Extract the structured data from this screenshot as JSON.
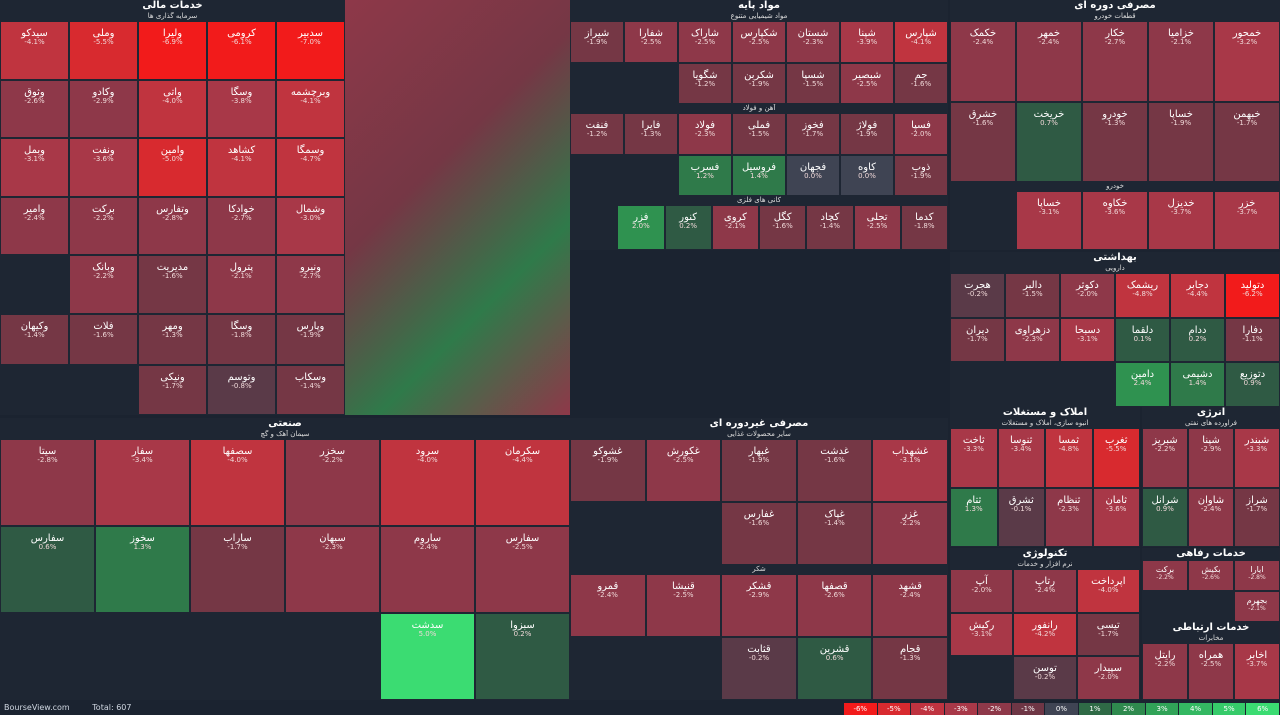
{
  "footer": {
    "site": "BourseView.com",
    "total": "Total: 607"
  },
  "legend": [
    {
      "label": "-6%",
      "color": "#f21b1b"
    },
    {
      "label": "-5%",
      "color": "#d82a2f"
    },
    {
      "label": "-4%",
      "color": "#bf3340"
    },
    {
      "label": "-3%",
      "color": "#a83848"
    },
    {
      "label": "-2%",
      "color": "#8e3849"
    },
    {
      "label": "-1%",
      "color": "#6e3645"
    },
    {
      "label": "0%",
      "color": "#3f4453"
    },
    {
      "label": "1%",
      "color": "#2f6a46"
    },
    {
      "label": "2%",
      "color": "#2f8a4e"
    },
    {
      "label": "3%",
      "color": "#31a358"
    },
    {
      "label": "4%",
      "color": "#34b862"
    },
    {
      "label": "5%",
      "color": "#36cb6a"
    },
    {
      "label": "6%",
      "color": "#3bdc72"
    }
  ],
  "sections": [
    {
      "title": "خدمات مالی",
      "subs": [
        {
          "title": "سرمایه گذاری ها",
          "tiles": [
            {
              "s": "سدبیر",
              "p": "-7.0%"
            },
            {
              "s": "کرومی",
              "p": "-6.1%"
            },
            {
              "s": "ولیرا",
              "p": "-6.9%"
            },
            {
              "s": "وملی",
              "p": "-5.5%"
            },
            {
              "s": "سیدکو",
              "p": "-4.1%"
            },
            {
              "s": "وبرچشمه",
              "p": "-4.1%"
            },
            {
              "s": "وسگا",
              "p": "-3.8%"
            },
            {
              "s": "واتی",
              "p": "-4.0%"
            },
            {
              "s": "وکادو",
              "p": "-2.9%"
            },
            {
              "s": "وثوق",
              "p": "-2.6%"
            },
            {
              "s": "وسمگا",
              "p": "-4.7%"
            },
            {
              "s": "کشاهد",
              "p": "-4.1%"
            },
            {
              "s": "وامین",
              "p": "-5.0%"
            },
            {
              "s": "ونفت",
              "p": "-3.6%"
            },
            {
              "s": "وبمل",
              "p": "-3.1%"
            },
            {
              "s": "وشمال",
              "p": "-3.0%"
            },
            {
              "s": "خوادکا",
              "p": "-2.7%"
            },
            {
              "s": "وتفارس",
              "p": "-2.8%"
            },
            {
              "s": "برکت",
              "p": "-2.2%"
            },
            {
              "s": "وامیر",
              "p": "-2.4%"
            },
            {
              "s": "ونیرو",
              "p": "-2.7%"
            },
            {
              "s": "پترول",
              "p": "-2.1%"
            },
            {
              "s": "مدیریت",
              "p": "-1.6%"
            },
            {
              "s": "وبانک",
              "p": "-2.2%"
            }
          ]
        },
        {
          "title": "",
          "tiles": [
            {
              "s": "وپارس",
              "p": "-1.9%"
            },
            {
              "s": "وسگا",
              "p": "-1.8%"
            },
            {
              "s": "ومهر",
              "p": "-1.3%"
            },
            {
              "s": "فلات",
              "p": "-1.6%"
            },
            {
              "s": "وکیهان",
              "p": "-1.4%"
            },
            {
              "s": "وسکاب",
              "p": "-1.4%"
            },
            {
              "s": "وتوسم",
              "p": "-0.8%"
            },
            {
              "s": "ونیکی",
              "p": "-1.7%"
            }
          ]
        }
      ]
    },
    {
      "title": "مواد پایه",
      "subs": [
        {
          "title": "مواد شیمیایی متنوع",
          "tiles": [
            {
              "s": "شپارس",
              "p": "-4.1%"
            },
            {
              "s": "شپنا",
              "p": "-3.9%"
            },
            {
              "s": "شستان",
              "p": "-2.3%"
            },
            {
              "s": "شکپارس",
              "p": "-2.5%"
            },
            {
              "s": "شاراک",
              "p": "-2.5%"
            },
            {
              "s": "شفارا",
              "p": "-2.5%"
            },
            {
              "s": "شیراز",
              "p": "-1.9%"
            },
            {
              "s": "جم",
              "p": "-1.6%"
            },
            {
              "s": "شبصیر",
              "p": "-2.5%"
            },
            {
              "s": "شسپا",
              "p": "-1.5%"
            },
            {
              "s": "شکربن",
              "p": "-1.9%"
            },
            {
              "s": "شگویا",
              "p": "-1.2%"
            }
          ]
        },
        {
          "title": "آهن و فولاد",
          "tiles": [
            {
              "s": "فسپا",
              "p": "-2.0%"
            },
            {
              "s": "فولاژ",
              "p": "-1.9%"
            },
            {
              "s": "فخوز",
              "p": "-1.7%"
            },
            {
              "s": "فملی",
              "p": "-1.5%"
            },
            {
              "s": "فولاد",
              "p": "-2.3%"
            },
            {
              "s": "فایرا",
              "p": "-1.3%"
            },
            {
              "s": "فنفت",
              "p": "-1.2%"
            },
            {
              "s": "ذوب",
              "p": "-1.9%"
            },
            {
              "s": "کاوه",
              "p": "0.0%"
            },
            {
              "s": "فجهان",
              "p": "0.0%"
            },
            {
              "s": "فروسیل",
              "p": "1.4%"
            },
            {
              "s": "فسرب",
              "p": "1.2%"
            }
          ]
        },
        {
          "title": "کانی های فلزی",
          "tiles": [
            {
              "s": "کدما",
              "p": "-1.8%"
            },
            {
              "s": "تجلی",
              "p": "-2.5%"
            },
            {
              "s": "کچاد",
              "p": "-1.4%"
            },
            {
              "s": "کگل",
              "p": "-1.6%"
            },
            {
              "s": "کروی",
              "p": "-2.1%"
            },
            {
              "s": "کنور",
              "p": "0.2%"
            },
            {
              "s": "فزر",
              "p": "2.0%"
            }
          ]
        }
      ]
    },
    {
      "title": "مصرفی دوره ای",
      "subs": [
        {
          "title": "قطعات خودرو",
          "tiles": [
            {
              "s": "خمحور",
              "p": "-3.2%"
            },
            {
              "s": "خزامیا",
              "p": "-2.1%"
            },
            {
              "s": "خکار",
              "p": "-2.7%"
            },
            {
              "s": "خمهر",
              "p": "-2.4%"
            },
            {
              "s": "خکمک",
              "p": "-2.4%"
            },
            {
              "s": "خبهمن",
              "p": "-1.7%"
            },
            {
              "s": "خساپا",
              "p": "-1.9%"
            },
            {
              "s": "خودرو",
              "p": "-1.3%"
            },
            {
              "s": "خریخت",
              "p": "0.7%"
            },
            {
              "s": "خشرق",
              "p": "-1.6%"
            }
          ]
        },
        {
          "title": "خودرو",
          "tiles": [
            {
              "s": "خزر",
              "p": "-3.7%"
            },
            {
              "s": "خدیزل",
              "p": "-3.7%"
            },
            {
              "s": "خکاوه",
              "p": "-3.6%"
            },
            {
              "s": "خساپا",
              "p": "-3.1%"
            }
          ]
        }
      ]
    },
    {
      "title": "بهداشتی",
      "subs": [
        {
          "title": "دارویی",
          "tiles": [
            {
              "s": "دتولید",
              "p": "-6.2%"
            },
            {
              "s": "دجابر",
              "p": "-4.4%"
            },
            {
              "s": "ریشمک",
              "p": "-4.8%"
            },
            {
              "s": "دکوثر",
              "p": "-2.0%"
            },
            {
              "s": "دالبر",
              "p": "-1.5%"
            },
            {
              "s": "هجرت",
              "p": "-0.2%"
            },
            {
              "s": "دفارا",
              "p": "-1.1%"
            },
            {
              "s": "ددام",
              "p": "0.2%"
            },
            {
              "s": "دلقما",
              "p": "0.1%"
            },
            {
              "s": "دسبحا",
              "p": "-3.1%"
            },
            {
              "s": "دزهراوی",
              "p": "-2.3%"
            },
            {
              "s": "دیران",
              "p": "-1.7%"
            },
            {
              "s": "دتوزیع",
              "p": "0.9%"
            },
            {
              "s": "دشیمی",
              "p": "1.4%"
            },
            {
              "s": "دامین",
              "p": "2.4%"
            }
          ]
        }
      ]
    },
    {
      "title": "صنعتی",
      "subs": [
        {
          "title": "سیمان آهک و گچ",
          "tiles": [
            {
              "s": "سکرمان",
              "p": "-4.4%"
            },
            {
              "s": "سرود",
              "p": "-4.0%"
            },
            {
              "s": "سخزر",
              "p": "-2.2%"
            },
            {
              "s": "سصفها",
              "p": "-4.0%"
            },
            {
              "s": "سفار",
              "p": "-3.4%"
            },
            {
              "s": "سیتا",
              "p": "-2.8%"
            },
            {
              "s": "سفارس",
              "p": "-2.5%"
            },
            {
              "s": "ساروم",
              "p": "-2.4%"
            },
            {
              "s": "سبهان",
              "p": "-2.3%"
            },
            {
              "s": "ساراب",
              "p": "-1.7%"
            },
            {
              "s": "سخوز",
              "p": "1.3%"
            },
            {
              "s": "سفارس",
              "p": "0.6%"
            },
            {
              "s": "سبزوا",
              "p": "0.2%"
            },
            {
              "s": "سدشت",
              "p": "5.0%"
            }
          ]
        }
      ]
    },
    {
      "title": "مصرفی غیردوره ای",
      "subs": [
        {
          "title": "سایر محصولات غذایی",
          "tiles": [
            {
              "s": "غشهداب",
              "p": "-3.1%"
            },
            {
              "s": "غدشت",
              "p": "-1.6%"
            },
            {
              "s": "غبهار",
              "p": "-1.9%"
            },
            {
              "s": "غکورش",
              "p": "-2.5%"
            },
            {
              "s": "غشوکو",
              "p": "-1.9%"
            },
            {
              "s": "غزر",
              "p": "-2.2%"
            },
            {
              "s": "غپاک",
              "p": "-1.4%"
            },
            {
              "s": "غفارس",
              "p": "-1.6%"
            }
          ]
        },
        {
          "title": "شکر",
          "tiles": [
            {
              "s": "قشهد",
              "p": "-2.4%"
            },
            {
              "s": "قصفها",
              "p": "-2.6%"
            },
            {
              "s": "قشکر",
              "p": "-2.9%"
            },
            {
              "s": "قنیشا",
              "p": "-2.5%"
            },
            {
              "s": "قمرو",
              "p": "-2.4%"
            },
            {
              "s": "قجام",
              "p": "-1.3%"
            },
            {
              "s": "قشرین",
              "p": "0.6%"
            },
            {
              "s": "قثابت",
              "p": "-0.2%"
            }
          ]
        }
      ]
    },
    {
      "title": "املاک و مستغلات",
      "subs": [
        {
          "title": "انبوه سازی، املاک و مستغلات",
          "tiles": [
            {
              "s": "ثغرب",
              "p": "-5.5%"
            },
            {
              "s": "ثمسا",
              "p": "-4.8%"
            },
            {
              "s": "ثنوسا",
              "p": "-3.4%"
            },
            {
              "s": "ثاخت",
              "p": "-3.3%"
            },
            {
              "s": "ثامان",
              "p": "-3.6%"
            },
            {
              "s": "ثنظام",
              "p": "-2.3%"
            },
            {
              "s": "ثشرق",
              "p": "-0.1%"
            },
            {
              "s": "ثتام",
              "p": "1.3%"
            }
          ]
        }
      ]
    },
    {
      "title": "انرژی",
      "subs": [
        {
          "title": "فراورده های نفتی",
          "tiles": [
            {
              "s": "شبندر",
              "p": "-3.3%"
            },
            {
              "s": "شپنا",
              "p": "-2.9%"
            },
            {
              "s": "شبریز",
              "p": "-2.2%"
            },
            {
              "s": "شراز",
              "p": "-1.7%"
            },
            {
              "s": "شاوان",
              "p": "-2.4%"
            },
            {
              "s": "شرانل",
              "p": "0.9%"
            }
          ]
        }
      ]
    },
    {
      "title": "تکنولوژی",
      "subs": [
        {
          "title": "نرم افزار و خدمات",
          "tiles": [
            {
              "s": "اپرداخت",
              "p": "-4.0%"
            },
            {
              "s": "رتاپ",
              "p": "-2.4%"
            },
            {
              "s": "آپ",
              "p": "-2.0%"
            },
            {
              "s": "تیسی",
              "p": "-1.7%"
            },
            {
              "s": "رانفور",
              "p": "-4.2%"
            },
            {
              "s": "رکیش",
              "p": "-3.1%"
            },
            {
              "s": "سپیدار",
              "p": "-2.0%"
            },
            {
              "s": "توسن",
              "p": "-0.2%"
            }
          ]
        }
      ]
    },
    {
      "title": "خدمات رفاهی",
      "subs": [
        {
          "title": "",
          "tiles": [
            {
              "s": "ایارا",
              "p": "-2.8%"
            },
            {
              "s": "بکیش",
              "p": "-2.6%"
            },
            {
              "s": "برکت",
              "p": "-2.2%"
            },
            {
              "s": "بجهرم",
              "p": "-2.1%"
            }
          ]
        }
      ]
    },
    {
      "title": "خدمات ارتباطی",
      "subs": [
        {
          "title": "مخابرات",
          "tiles": [
            {
              "s": "اخابر",
              "p": "-3.7%"
            },
            {
              "s": "همراه",
              "p": "-2.5%"
            },
            {
              "s": "رایتل",
              "p": "-2.2%"
            }
          ]
        }
      ]
    }
  ]
}
